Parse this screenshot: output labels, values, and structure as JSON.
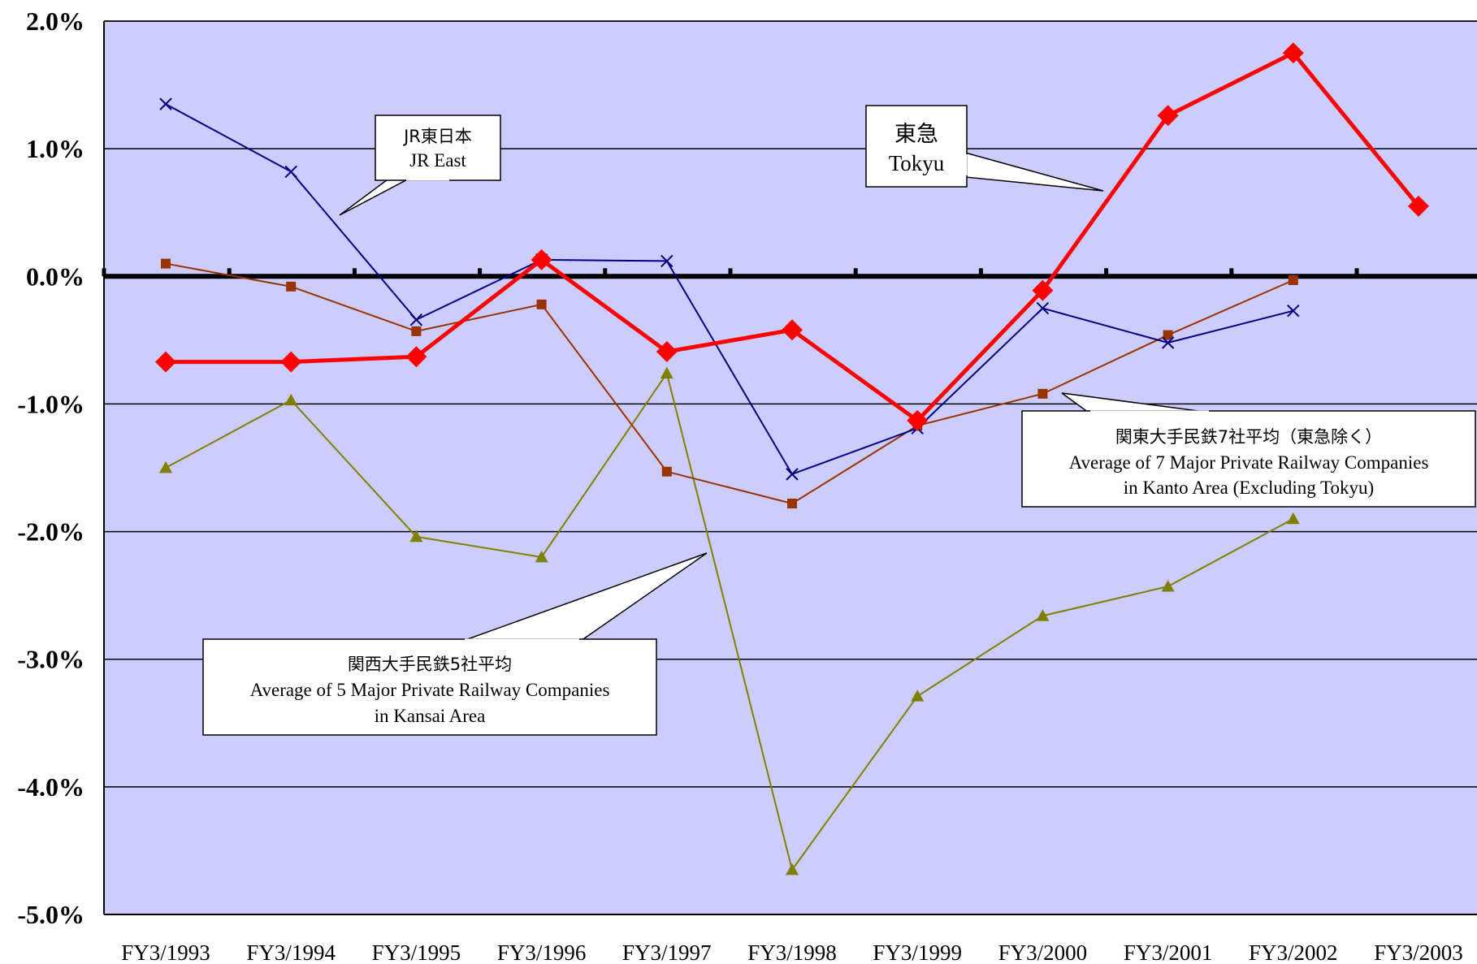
{
  "chart_data": {
    "type": "line",
    "categories": [
      "FY3/1993",
      "FY3/1994",
      "FY3/1995",
      "FY3/1996",
      "FY3/1997",
      "FY3/1998",
      "FY3/1999",
      "FY3/2000",
      "FY3/2001",
      "FY3/2002",
      "FY3/2003"
    ],
    "ylim": [
      -5.0,
      2.0
    ],
    "yticks": [
      "2.0%",
      "1.0%",
      "0.0%",
      "-1.0%",
      "-2.0%",
      "-3.0%",
      "-4.0%",
      "-5.0%"
    ],
    "grid": true,
    "plot_background": "#ccccff",
    "series": [
      {
        "key": "tokyu",
        "color": "#ff0000",
        "marker": "diamond",
        "values": [
          -0.67,
          -0.67,
          -0.63,
          0.13,
          -0.59,
          -0.42,
          -1.13,
          -0.11,
          1.26,
          1.75,
          0.55
        ]
      },
      {
        "key": "jr_east",
        "color": "#000080",
        "marker": "x",
        "values": [
          1.35,
          0.82,
          -0.34,
          0.13,
          0.12,
          -1.55,
          -1.19,
          -0.25,
          -0.52,
          -0.27,
          null
        ]
      },
      {
        "key": "kanto7",
        "color": "#993300",
        "marker": "square",
        "values": [
          0.1,
          -0.08,
          -0.43,
          -0.22,
          -1.53,
          -1.78,
          -1.17,
          -0.92,
          -0.46,
          -0.03,
          null
        ]
      },
      {
        "key": "kansai5",
        "color": "#808000",
        "marker": "triangle",
        "values": [
          -1.5,
          -0.97,
          -2.04,
          -2.2,
          -0.76,
          -4.65,
          -3.29,
          -2.66,
          -2.43,
          -1.9,
          null
        ]
      }
    ],
    "callouts": {
      "jr_east": {
        "jp": "JR東日本",
        "en": "JR East"
      },
      "tokyu": {
        "jp": "東急",
        "en": "Tokyu"
      },
      "kanto7": {
        "jp": "関東大手民鉄7社平均（東急除く）",
        "en1": "Average of 7 Major Private Railway Companies",
        "en2": "in Kanto Area (Excluding Tokyu)"
      },
      "kansai5": {
        "jp": "関西大手民鉄5社平均",
        "en1": "Average of 5 Major Private Railway Companies",
        "en2": "in Kansai Area"
      }
    }
  }
}
